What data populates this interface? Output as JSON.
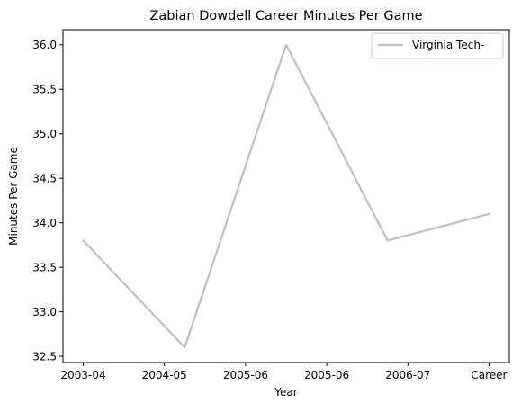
{
  "chart_data": {
    "type": "line",
    "title": "Zabian Dowdell Career Minutes Per Game",
    "xlabel": "Year",
    "ylabel": "Minutes Per Game",
    "x_tick_labels": [
      "2003-04",
      "2004-05",
      "2005-06",
      "2005-06",
      "2006-07",
      "Career"
    ],
    "x_ticks": [
      0,
      1,
      2,
      3,
      4,
      5
    ],
    "xlim": [
      -0.25,
      5.25
    ],
    "yticks": [
      "32.5",
      "33.0",
      "33.5",
      "34.0",
      "34.5",
      "35.0",
      "35.5",
      "36.0"
    ],
    "ylim": [
      32.43,
      36.17
    ],
    "series": [
      {
        "name": "Virginia Tech-",
        "color": "#bfbfbf",
        "points": [
          {
            "x": 0,
            "y": 33.8
          },
          {
            "x": 1.25,
            "y": 32.6
          },
          {
            "x": 2.5,
            "y": 36.0
          },
          {
            "x": 3.75,
            "y": 33.8
          },
          {
            "x": 5,
            "y": 34.1
          }
        ]
      }
    ],
    "legend_position": "top-right",
    "grid": false
  }
}
